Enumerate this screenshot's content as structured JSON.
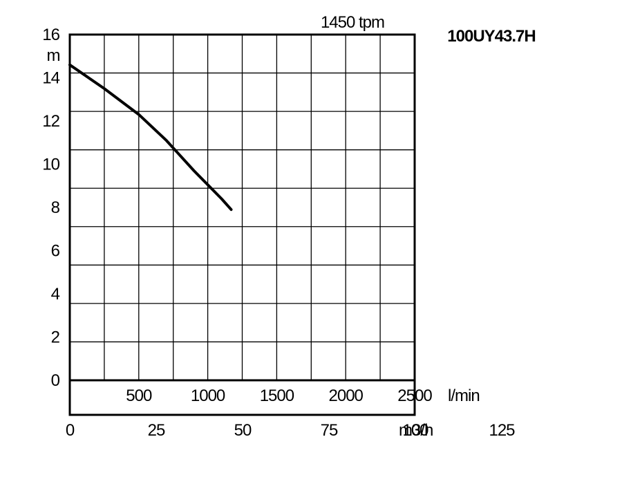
{
  "chart_data": {
    "type": "line",
    "model": "100UY43.7H",
    "speed_label": "1450 tpm",
    "ylabel": "m",
    "ylim": [
      0,
      16
    ],
    "y_ticks": [
      "0",
      "2",
      "4",
      "6",
      "8",
      "10",
      "12",
      "14",
      "16"
    ],
    "xlim": [
      0,
      2500
    ],
    "x_ticks_lmin": [
      "500",
      "1000",
      "1500",
      "2000",
      "2500"
    ],
    "x_ticks_lmin_values": [
      500,
      1000,
      1500,
      2000,
      2500
    ],
    "x_unit_lmin": "l/min",
    "x_ticks_m3h": [
      "0",
      "25",
      "50",
      "75",
      "100",
      "125"
    ],
    "x_ticks_m3h_values": [
      0,
      25,
      50,
      75,
      100,
      125
    ],
    "x_unit_m3h": "m3/h",
    "grid": true,
    "series": [
      {
        "x": [
          0,
          250,
          500,
          700,
          900,
          1100,
          1170
        ],
        "y": [
          14.6,
          13.5,
          12.3,
          11.1,
          9.7,
          8.4,
          7.9
        ]
      }
    ]
  }
}
